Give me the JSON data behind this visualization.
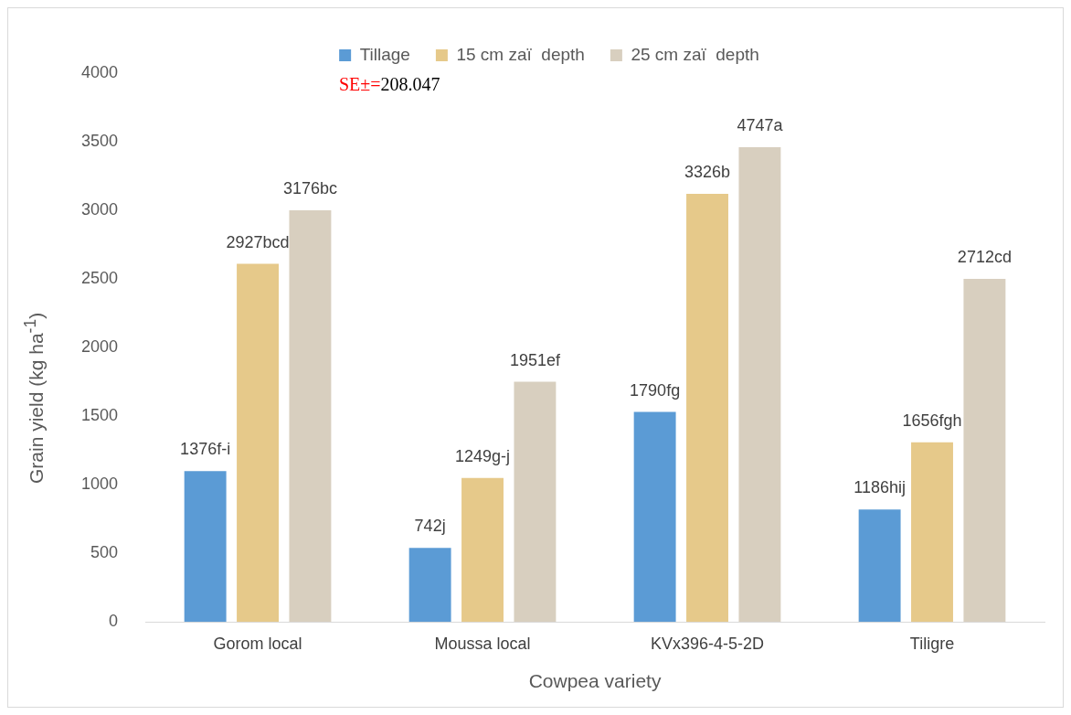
{
  "chart_data": {
    "type": "bar",
    "xlabel": "Cowpea variety",
    "ylabel": "Grain yield (kg ha$^{-1}$)",
    "categories": [
      "Gorom local",
      "Moussa local",
      "KVx396-4-5-2D",
      "Tiligre"
    ],
    "series": [
      {
        "name": "Tillage",
        "color": "#5b9bd5",
        "values": [
          1100,
          540,
          1530,
          820
        ]
      },
      {
        "name": "15 cm zaï  depth",
        "color": "#e6c98a",
        "values": [
          2610,
          1050,
          3120,
          1310
        ]
      },
      {
        "name": "25 cm zaï  depth",
        "color": "#d8cfbf",
        "values": [
          3000,
          1750,
          3460,
          2500
        ]
      }
    ],
    "ylim": [
      0,
      4000
    ],
    "yticks": [
      0,
      500,
      1000,
      1500,
      2000,
      2500,
      3000,
      3500,
      4000
    ],
    "grid": false,
    "legend": "top",
    "annotations": [
      "SE±=208.047",
      "1376f-i",
      "2927bcd",
      "3176bc",
      "742j",
      "1249g-j",
      "1951ef",
      "1790fg",
      "3326b",
      "4747a",
      "1186hij",
      "1656fgh",
      "2712cd"
    ]
  }
}
